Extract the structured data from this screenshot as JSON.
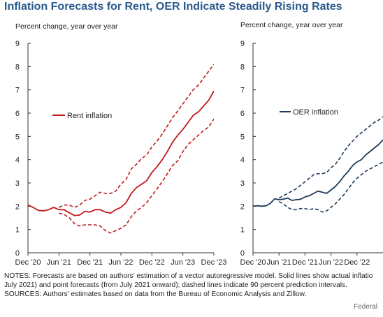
{
  "title": "Inflation Forecasts for Rent, OER Indicate Steadily Rising Rates",
  "notes": "NOTES: Forecasts are based on authors' estimation of a vector autoregressive model. Solid lines show actual inflatio",
  "notes_line2": "July 2021) and point forecasts (from July 2021 onward); dashed lines indicate 90 percent prediction intervals.",
  "sources": "SOURCES: Authors' estimates based on data from the Bureau of Economic Analysis and Zillow.",
  "credit": "Federal",
  "chart_data": [
    {
      "type": "line",
      "ylabel": "Percent change, year over year",
      "ylim": [
        0,
        9
      ],
      "yticks": [
        "0",
        "1",
        "2",
        "3",
        "4",
        "5",
        "6",
        "7",
        "8",
        "9"
      ],
      "xtick_labels": [
        "Dec '20",
        "Jun '21",
        "Dec '21",
        "Jun '22",
        "Dec '22",
        "Jun '23",
        "Dec '23"
      ],
      "xlim": [
        0,
        36
      ],
      "legend": "Rent inflation",
      "color": "#c0191b",
      "series": [
        {
          "name": "Rent inflation",
          "style": "solid",
          "x": [
            0,
            1,
            2,
            3,
            4,
            5,
            6,
            7,
            8,
            9,
            10,
            11,
            12,
            13,
            14,
            15,
            16,
            17,
            18,
            19,
            20,
            21,
            22,
            23,
            24,
            25,
            26,
            27,
            28,
            29,
            30,
            31,
            32,
            33,
            34,
            35,
            36
          ],
          "values": [
            2.05,
            1.95,
            1.82,
            1.8,
            1.85,
            1.95,
            1.85,
            1.85,
            1.72,
            1.6,
            1.62,
            1.78,
            1.75,
            1.85,
            1.85,
            1.75,
            1.7,
            1.85,
            1.95,
            2.15,
            2.55,
            2.8,
            2.95,
            3.1,
            3.45,
            3.7,
            4.0,
            4.35,
            4.75,
            5.05,
            5.3,
            5.6,
            5.9,
            6.05,
            6.3,
            6.55,
            6.95
          ]
        },
        {
          "name": "Upper bound",
          "style": "dashed",
          "x": [
            6,
            7,
            8,
            9,
            10,
            11,
            12,
            13,
            14,
            15,
            16,
            17,
            18,
            19,
            20,
            21,
            22,
            23,
            24,
            25,
            26,
            27,
            28,
            29,
            30,
            31,
            32,
            33,
            34,
            35,
            36
          ],
          "values": [
            1.95,
            2.05,
            2.05,
            1.95,
            2.05,
            2.25,
            2.3,
            2.45,
            2.6,
            2.55,
            2.55,
            2.65,
            2.95,
            3.15,
            3.6,
            3.8,
            4.05,
            4.2,
            4.55,
            4.8,
            5.1,
            5.45,
            5.8,
            6.1,
            6.4,
            6.7,
            7.0,
            7.2,
            7.5,
            7.8,
            8.1
          ]
        },
        {
          "name": "Lower bound",
          "style": "dashed",
          "x": [
            6,
            7,
            8,
            9,
            10,
            11,
            12,
            13,
            14,
            15,
            16,
            17,
            18,
            19,
            20,
            21,
            22,
            23,
            24,
            25,
            26,
            27,
            28,
            29,
            30,
            31,
            32,
            33,
            34,
            35,
            36
          ],
          "values": [
            1.7,
            1.65,
            1.5,
            1.25,
            1.15,
            1.2,
            1.2,
            1.2,
            1.15,
            0.95,
            0.85,
            0.95,
            1.05,
            1.2,
            1.55,
            1.8,
            1.95,
            2.15,
            2.45,
            2.75,
            3.05,
            3.4,
            3.75,
            3.95,
            4.35,
            4.65,
            4.85,
            5.05,
            5.25,
            5.4,
            5.75
          ]
        }
      ]
    },
    {
      "type": "line",
      "ylabel": "Percent change, year over year",
      "ylim": [
        0,
        9
      ],
      "yticks": [
        "0",
        "1",
        "2",
        "3",
        "4",
        "5",
        "6",
        "7",
        "8",
        "9"
      ],
      "xtick_labels": [
        "Dec '20",
        "Jun '21",
        "Dec '21",
        "Jun '22",
        "Dec '22"
      ],
      "xlim": [
        0,
        30
      ],
      "legend": "OER inflation",
      "color": "#1f3b5c",
      "series": [
        {
          "name": "OER inflation",
          "style": "solid",
          "x": [
            0,
            1,
            2,
            3,
            4,
            5,
            6,
            7,
            8,
            9,
            10,
            11,
            12,
            13,
            14,
            15,
            16,
            17,
            18,
            19,
            20,
            21,
            22,
            23,
            24,
            25,
            26,
            27,
            28,
            29,
            30
          ],
          "values": [
            2.0,
            2.02,
            2.0,
            2.02,
            2.12,
            2.32,
            2.28,
            2.3,
            2.35,
            2.25,
            2.28,
            2.3,
            2.4,
            2.45,
            2.55,
            2.65,
            2.6,
            2.55,
            2.7,
            2.85,
            3.05,
            3.3,
            3.5,
            3.75,
            3.9,
            4.0,
            4.2,
            4.35,
            4.5,
            4.65,
            4.85
          ]
        },
        {
          "name": "Upper bound",
          "style": "dashed",
          "x": [
            6,
            7,
            8,
            9,
            10,
            11,
            12,
            13,
            14,
            15,
            16,
            17,
            18,
            19,
            20,
            21,
            22,
            23,
            24,
            25,
            26,
            27,
            28,
            29,
            30
          ],
          "values": [
            2.35,
            2.45,
            2.55,
            2.65,
            2.75,
            2.9,
            3.05,
            3.2,
            3.35,
            3.4,
            3.4,
            3.45,
            3.65,
            3.8,
            4.05,
            4.35,
            4.6,
            4.8,
            5.0,
            5.15,
            5.3,
            5.45,
            5.6,
            5.7,
            5.85
          ]
        },
        {
          "name": "Lower bound",
          "style": "dashed",
          "x": [
            6,
            7,
            8,
            9,
            10,
            11,
            12,
            13,
            14,
            15,
            16,
            17,
            18,
            19,
            20,
            21,
            22,
            23,
            24,
            25,
            26,
            27,
            28,
            29,
            30
          ],
          "values": [
            2.2,
            2.1,
            1.95,
            1.85,
            1.85,
            1.9,
            1.9,
            1.85,
            1.9,
            1.85,
            1.75,
            1.8,
            1.95,
            2.1,
            2.3,
            2.5,
            2.75,
            3.0,
            3.2,
            3.35,
            3.5,
            3.6,
            3.7,
            3.8,
            3.9
          ]
        }
      ]
    }
  ]
}
